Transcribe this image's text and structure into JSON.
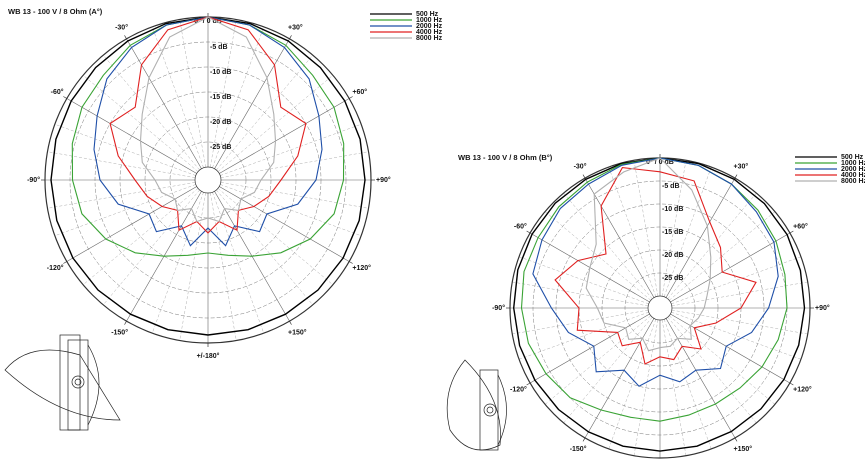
{
  "chart_data": [
    {
      "type": "polar",
      "title": "WB 13 - 100 V / 8 Ohm (A°)",
      "theta": [
        -180,
        -165,
        -150,
        -135,
        -120,
        -105,
        -90,
        -75,
        -60,
        -45,
        -30,
        -15,
        0,
        15,
        30,
        45,
        60,
        75,
        90,
        105,
        120,
        135,
        150,
        165
      ],
      "rlim": [
        -30,
        0
      ],
      "rticks": [
        {
          "value": -5,
          "label": "-5 dB"
        },
        {
          "value": -10,
          "label": "-10 dB"
        },
        {
          "value": -15,
          "label": "-15 dB"
        },
        {
          "value": -20,
          "label": "-20 dB"
        },
        {
          "value": -25,
          "label": "-25 dB"
        }
      ],
      "thetaticks": [
        {
          "value": 0,
          "label": "0° / 0 dB"
        },
        {
          "value": 30,
          "label": "+30°"
        },
        {
          "value": -30,
          "label": "-30°"
        },
        {
          "value": 60,
          "label": "+60°"
        },
        {
          "value": -60,
          "label": "-60°"
        },
        {
          "value": 90,
          "label": "+90°"
        },
        {
          "value": -90,
          "label": "-90°"
        },
        {
          "value": 120,
          "label": "+120°"
        },
        {
          "value": -120,
          "label": "-120°"
        },
        {
          "value": 150,
          "label": "+150°"
        },
        {
          "value": -150,
          "label": "-150°"
        },
        {
          "value": 180,
          "label": "+/-180°"
        }
      ],
      "series": [
        {
          "name": "500 Hz",
          "color": "#000000",
          "values": [
            -1.6,
            -1.6,
            -1.6,
            -1.5,
            -1.4,
            -1.3,
            -1.2,
            -1.1,
            -1,
            -0.8,
            -0.5,
            -0.2,
            0,
            -0.2,
            -0.5,
            -0.8,
            -1,
            -1.1,
            -1.2,
            -1.3,
            -1.4,
            -1.5,
            -1.6,
            -1.6
          ]
        },
        {
          "name": "1000 Hz",
          "color": "#3aa335",
          "values": [
            -18,
            -17,
            -15,
            -12,
            -9,
            -6.5,
            -5.5,
            -4.5,
            -3.5,
            -3,
            -1.5,
            -0.5,
            0,
            -0.5,
            -1.5,
            -3,
            -3.5,
            -4.5,
            -5.5,
            -6.5,
            -9,
            -12,
            -15,
            -17
          ]
        },
        {
          "name": "2000 Hz",
          "color": "#1f4fa8",
          "values": [
            -23,
            -19,
            -22,
            -18,
            -19,
            -14,
            -11,
            -9,
            -7,
            -4,
            -2,
            -0.5,
            0,
            -0.5,
            -2,
            -4,
            -7,
            -9,
            -11,
            -14,
            -19,
            -18,
            -22,
            -19
          ]
        },
        {
          "name": "4000 Hz",
          "color": "#e02020",
          "values": [
            -22,
            -24,
            -21,
            -24,
            -22,
            -20,
            -18,
            -14,
            -10,
            -12,
            -6,
            -1.5,
            0,
            -1.5,
            -6,
            -12,
            -10,
            -14,
            -18,
            -20,
            -22,
            -24,
            -21,
            -24
          ]
        },
        {
          "name": "8000 Hz",
          "color": "#b0b0b0",
          "values": [
            -25,
            -24,
            -26,
            -24,
            -25,
            -23,
            -22,
            -19,
            -17,
            -14,
            -9,
            -3,
            0,
            -3,
            -9,
            -14,
            -17,
            -19,
            -22,
            -23,
            -25,
            -24,
            -26,
            -24
          ]
        }
      ]
    },
    {
      "type": "polar",
      "title": "WB 13 - 100 V / 8 Ohm (B°)",
      "theta": [
        -180,
        -165,
        -150,
        -135,
        -120,
        -105,
        -90,
        -75,
        -60,
        -45,
        -30,
        -15,
        0,
        15,
        30,
        45,
        60,
        75,
        90,
        105,
        120,
        135,
        150,
        165
      ],
      "rlim": [
        -30,
        0
      ],
      "rticks": [
        {
          "value": -5,
          "label": "-5 dB"
        },
        {
          "value": -10,
          "label": "-10 dB"
        },
        {
          "value": -15,
          "label": "-15 dB"
        },
        {
          "value": -20,
          "label": "-20 dB"
        },
        {
          "value": -25,
          "label": "-25 dB"
        }
      ],
      "thetaticks": [
        {
          "value": 0,
          "label": "0° / 0 dB"
        },
        {
          "value": 30,
          "label": "+30°"
        },
        {
          "value": -30,
          "label": "-30°"
        },
        {
          "value": 60,
          "label": "+60°"
        },
        {
          "value": -60,
          "label": "-60°"
        },
        {
          "value": 90,
          "label": "+90°"
        },
        {
          "value": -90,
          "label": "-90°"
        },
        {
          "value": 120,
          "label": "+120°"
        },
        {
          "value": -120,
          "label": "-120°"
        },
        {
          "value": 150,
          "label": "+150°"
        },
        {
          "value": -150,
          "label": "-150°"
        }
      ],
      "series": [
        {
          "name": "500 Hz",
          "color": "#000000",
          "values": [
            -1.5,
            -1.5,
            -1.5,
            -1.4,
            -1.2,
            -1,
            -0.8,
            -0.6,
            -0.5,
            -0.4,
            -0.3,
            -0.1,
            0,
            -0.1,
            -0.3,
            -0.5,
            -0.7,
            -1,
            -1.2,
            -1.4,
            -1.5,
            -1.6,
            -1.6,
            -1.5
          ]
        },
        {
          "name": "1000 Hz",
          "color": "#3aa335",
          "values": [
            -8,
            -8,
            -7,
            -5,
            -4,
            -3,
            -2.5,
            -2,
            -2,
            -1.5,
            -1,
            -0.3,
            0,
            -0.5,
            -1.5,
            -2.5,
            -3.5,
            -4.5,
            -5,
            -6,
            -7,
            -8,
            -8.5,
            -8.5
          ]
        },
        {
          "name": "2000 Hz",
          "color": "#1f4fa8",
          "values": [
            -18,
            -15,
            -17,
            -13,
            -16,
            -12,
            -9,
            -4,
            -3,
            -2,
            -1.5,
            -0.5,
            0,
            -0.5,
            -1.5,
            -3,
            -4,
            -6,
            -9,
            -12,
            -16,
            -14,
            -17,
            -16
          ]
        },
        {
          "name": "4000 Hz",
          "color": "#e02020",
          "values": [
            -22,
            -20,
            -24,
            -21,
            -22,
            -14,
            -15,
            -9,
            -12,
            -16,
            -7,
            -1,
            -3,
            -4,
            -11,
            -14,
            -17,
            -11,
            -15,
            -20,
            -24,
            -20,
            -23,
            -21
          ]
        },
        {
          "name": "8000 Hz",
          "color": "#b0b0b0",
          "values": [
            -24,
            -23,
            -25,
            -23,
            -24,
            -20,
            -19,
            -16,
            -15,
            -13,
            -4,
            -2,
            0,
            -6,
            -12,
            -17,
            -20,
            -22,
            -23,
            -24,
            -25,
            -23,
            -25,
            -24
          ]
        }
      ]
    }
  ]
}
